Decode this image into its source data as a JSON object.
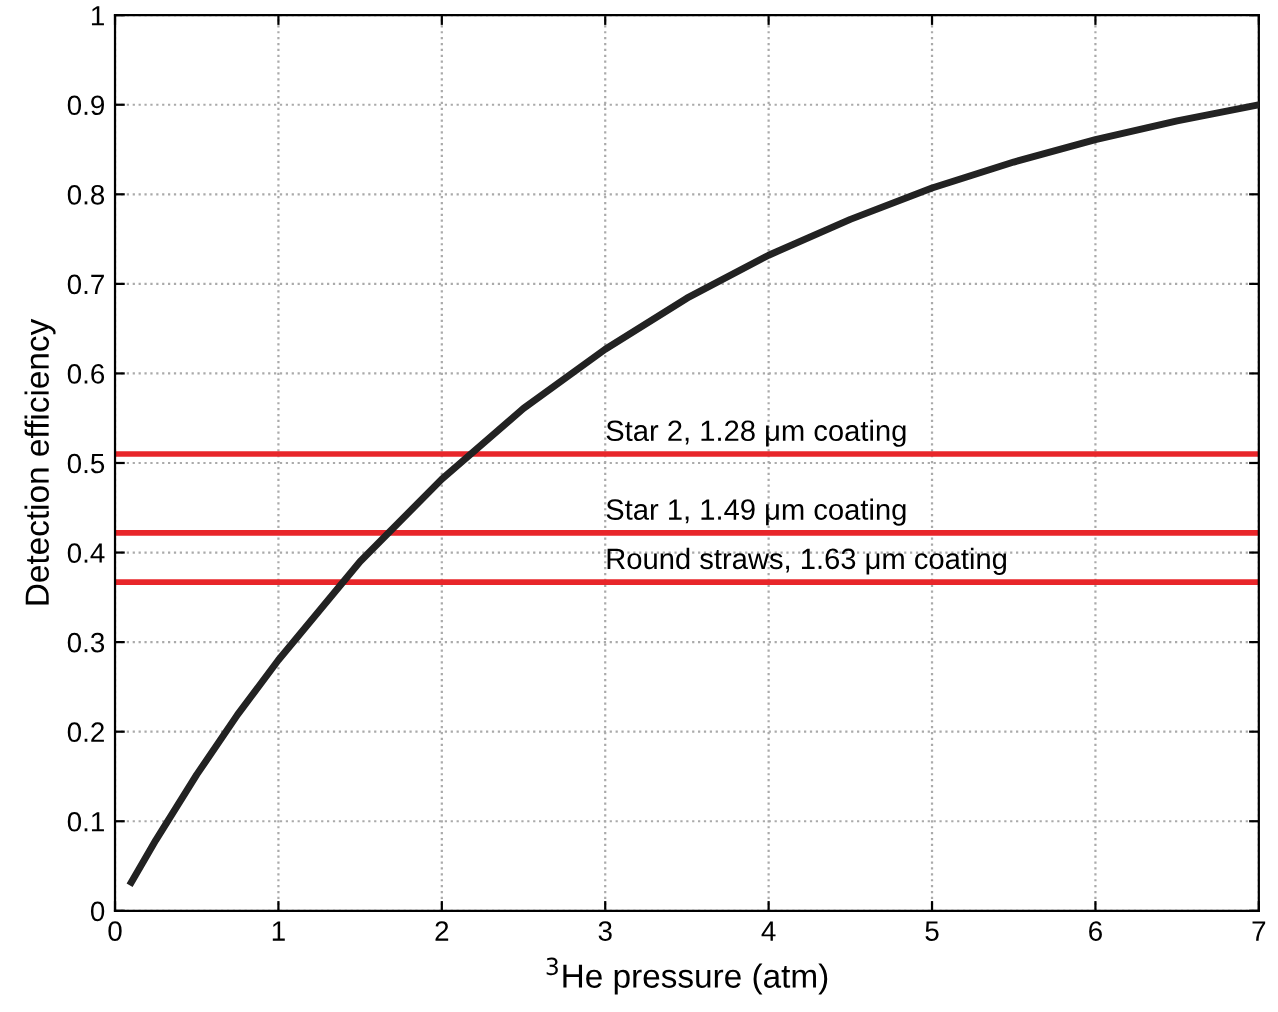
{
  "chart_data": {
    "type": "line",
    "xlabel": "$^{3}$He pressure (atm)",
    "ylabel": "Detection efficiency",
    "x": [
      0.1,
      0.25,
      0.5,
      0.75,
      1,
      1.5,
      2,
      2.5,
      3,
      3.5,
      4,
      4.5,
      5,
      5.5,
      6,
      6.5,
      7
    ],
    "series": [
      {
        "color": "#222222",
        "values": [
          0.032,
          0.079,
          0.152,
          0.219,
          0.28,
          0.39,
          0.482,
          0.561,
          0.627,
          0.684,
          0.732,
          0.772,
          0.807,
          0.836,
          0.861,
          0.882,
          0.9
        ]
      }
    ],
    "ref_lines": [
      {
        "axis": "y",
        "value": 0.51,
        "label": "Star 2, 1.28 μm coating",
        "color": "#e8262a"
      },
      {
        "axis": "y",
        "value": 0.422,
        "label": "Star 1, 1.49 μm coating",
        "color": "#e8262a"
      },
      {
        "axis": "y",
        "value": 0.367,
        "label": "Round straws, 1.63 μm coating",
        "color": "#e8262a"
      }
    ],
    "xlim": [
      0,
      7
    ],
    "ylim": [
      0,
      1
    ],
    "xticks": [
      0,
      1,
      2,
      3,
      4,
      5,
      6,
      7
    ],
    "yticks": [
      0,
      0.1,
      0.2,
      0.3,
      0.4,
      0.5,
      0.6,
      0.7,
      0.8,
      0.9,
      1
    ],
    "grid": true,
    "legend": false,
    "marker": "none",
    "line_style": "solid"
  }
}
